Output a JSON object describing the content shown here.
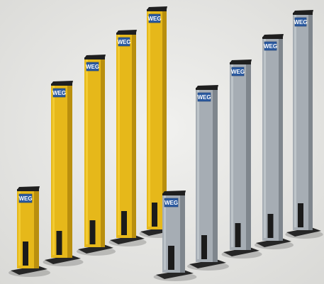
{
  "image": {
    "subject": "product photo of safety light curtain mounting columns",
    "logo_text": "WEG",
    "colors": {
      "background": "#e7e7e5",
      "yellow_front": "#e6b81a",
      "yellow_side": "#b98f0e",
      "yellow_highlight": "#f5cf3a",
      "gray_front": "#a6adb4",
      "gray_side": "#7f868d",
      "gray_highlight": "#c3c9ce",
      "cap": "#1f1f1f",
      "base_plate": "#262626",
      "logo_plate": "#2b5aa0"
    },
    "yellow_column_count": 5,
    "gray_column_count": 5
  }
}
